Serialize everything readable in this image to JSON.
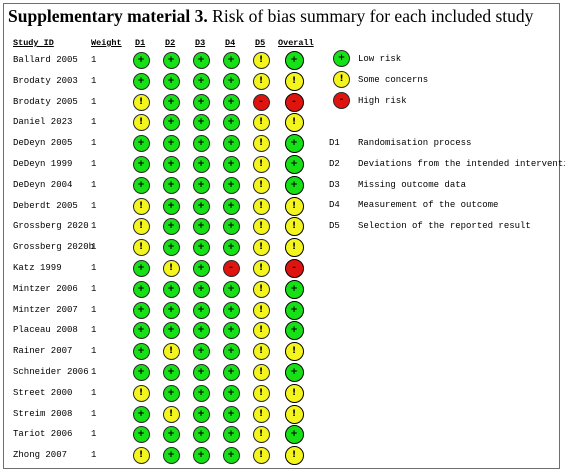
{
  "title_bold": "Supplementary material 3.",
  "title_rest": " Risk of bias summary for each included study",
  "headers": {
    "study": "Study ID",
    "weight": "Weight",
    "d1": "D1",
    "d2": "D2",
    "d3": "D3",
    "d4": "D4",
    "d5": "D5",
    "overall": "Overall"
  },
  "symbols": {
    "low": "+",
    "some": "!",
    "high": "-"
  },
  "colors": {
    "low": "#16e016",
    "some": "#f5f51e",
    "high": "#e0140f"
  },
  "rows": [
    {
      "study": "Ballard 2005",
      "weight": "1",
      "d": [
        "low",
        "low",
        "low",
        "low",
        "some"
      ],
      "overall": "low"
    },
    {
      "study": "Brodaty 2003",
      "weight": "1",
      "d": [
        "low",
        "low",
        "low",
        "low",
        "some"
      ],
      "overall": "some"
    },
    {
      "study": "Brodaty 2005",
      "weight": "1",
      "d": [
        "some",
        "low",
        "low",
        "low",
        "high"
      ],
      "overall": "high"
    },
    {
      "study": "Daniel 2023",
      "weight": "1",
      "d": [
        "some",
        "low",
        "low",
        "low",
        "some"
      ],
      "overall": "some"
    },
    {
      "study": "DeDeyn 2005",
      "weight": "1",
      "d": [
        "low",
        "low",
        "low",
        "low",
        "some"
      ],
      "overall": "low"
    },
    {
      "study": "DeDeyn 1999",
      "weight": "1",
      "d": [
        "low",
        "low",
        "low",
        "low",
        "some"
      ],
      "overall": "low"
    },
    {
      "study": "DeDeyn 2004",
      "weight": "1",
      "d": [
        "low",
        "low",
        "low",
        "low",
        "some"
      ],
      "overall": "low"
    },
    {
      "study": "Deberdt 2005",
      "weight": "1",
      "d": [
        "some",
        "low",
        "low",
        "low",
        "some"
      ],
      "overall": "some"
    },
    {
      "study": "Grossberg 2020",
      "weight": "1",
      "d": [
        "some",
        "low",
        "low",
        "low",
        "some"
      ],
      "overall": "some"
    },
    {
      "study": "Grossberg 2020b",
      "weight": "1",
      "d": [
        "some",
        "low",
        "low",
        "low",
        "some"
      ],
      "overall": "some"
    },
    {
      "study": "Katz 1999",
      "weight": "1",
      "d": [
        "low",
        "some",
        "low",
        "high",
        "some"
      ],
      "overall": "high"
    },
    {
      "study": "Mintzer 2006",
      "weight": "1",
      "d": [
        "low",
        "low",
        "low",
        "low",
        "some"
      ],
      "overall": "low"
    },
    {
      "study": "Mintzer 2007",
      "weight": "1",
      "d": [
        "low",
        "low",
        "low",
        "low",
        "some"
      ],
      "overall": "low"
    },
    {
      "study": "Placeau 2008",
      "weight": "1",
      "d": [
        "low",
        "low",
        "low",
        "low",
        "some"
      ],
      "overall": "low"
    },
    {
      "study": "Rainer 2007",
      "weight": "1",
      "d": [
        "low",
        "some",
        "low",
        "low",
        "some"
      ],
      "overall": "some"
    },
    {
      "study": "Schneider 2006",
      "weight": "1",
      "d": [
        "low",
        "low",
        "low",
        "low",
        "some"
      ],
      "overall": "low"
    },
    {
      "study": "Street 2000",
      "weight": "1",
      "d": [
        "some",
        "low",
        "low",
        "low",
        "some"
      ],
      "overall": "some"
    },
    {
      "study": "Streim 2008",
      "weight": "1",
      "d": [
        "low",
        "some",
        "low",
        "low",
        "some"
      ],
      "overall": "some"
    },
    {
      "study": "Tariot 2006",
      "weight": "1",
      "d": [
        "low",
        "low",
        "low",
        "low",
        "some"
      ],
      "overall": "low"
    },
    {
      "study": "Zhong 2007",
      "weight": "1",
      "d": [
        "some",
        "low",
        "low",
        "low",
        "some"
      ],
      "overall": "some"
    }
  ],
  "legend": [
    {
      "level": "low",
      "label": "Low risk"
    },
    {
      "level": "some",
      "label": "Some concerns"
    },
    {
      "level": "high",
      "label": "High risk"
    }
  ],
  "domains": [
    {
      "code": "D1",
      "label": "Randomisation process"
    },
    {
      "code": "D2",
      "label": "Deviations from the intended interventions"
    },
    {
      "code": "D3",
      "label": "Missing outcome data"
    },
    {
      "code": "D4",
      "label": "Measurement of the outcome"
    },
    {
      "code": "D5",
      "label": "Selection of the reported result"
    }
  ]
}
